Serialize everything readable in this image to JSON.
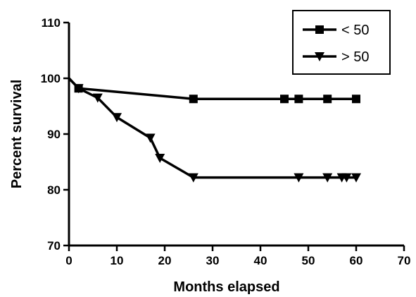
{
  "chart_data": {
    "type": "line",
    "xlabel": "Months elapsed",
    "ylabel": "Percent survival",
    "xlim": [
      0,
      70
    ],
    "ylim": [
      70,
      110
    ],
    "xticks": [
      0,
      10,
      20,
      30,
      40,
      50,
      60,
      70
    ],
    "yticks": [
      70,
      80,
      90,
      100,
      110
    ],
    "grid": false,
    "legend_position": "top-right",
    "series": [
      {
        "name": "< 50",
        "marker": "square",
        "steps": [
          [
            0,
            100
          ],
          [
            2,
            98.2
          ],
          [
            26,
            96.3
          ],
          [
            60,
            96.3
          ]
        ],
        "markers": [
          [
            2,
            98.2
          ],
          [
            26,
            96.3
          ],
          [
            45,
            96.3
          ],
          [
            48,
            96.3
          ],
          [
            54,
            96.3
          ],
          [
            60,
            96.3
          ]
        ]
      },
      {
        "name": "> 50",
        "marker": "triangle-down",
        "steps": [
          [
            0,
            100
          ],
          [
            2,
            98.2
          ],
          [
            6,
            96.5
          ],
          [
            10,
            93
          ],
          [
            17,
            89.3
          ],
          [
            19,
            85.7
          ],
          [
            26,
            82.2
          ],
          [
            60,
            82.2
          ]
        ],
        "markers": [
          [
            2,
            98.2
          ],
          [
            6,
            96.5
          ],
          [
            10,
            93
          ],
          [
            17,
            89.3
          ],
          [
            19,
            85.7
          ],
          [
            26,
            82.2
          ],
          [
            48,
            82.2
          ],
          [
            54,
            82.2
          ],
          [
            57,
            82.2
          ],
          [
            58,
            82.2
          ],
          [
            60,
            82.2
          ]
        ]
      }
    ]
  }
}
